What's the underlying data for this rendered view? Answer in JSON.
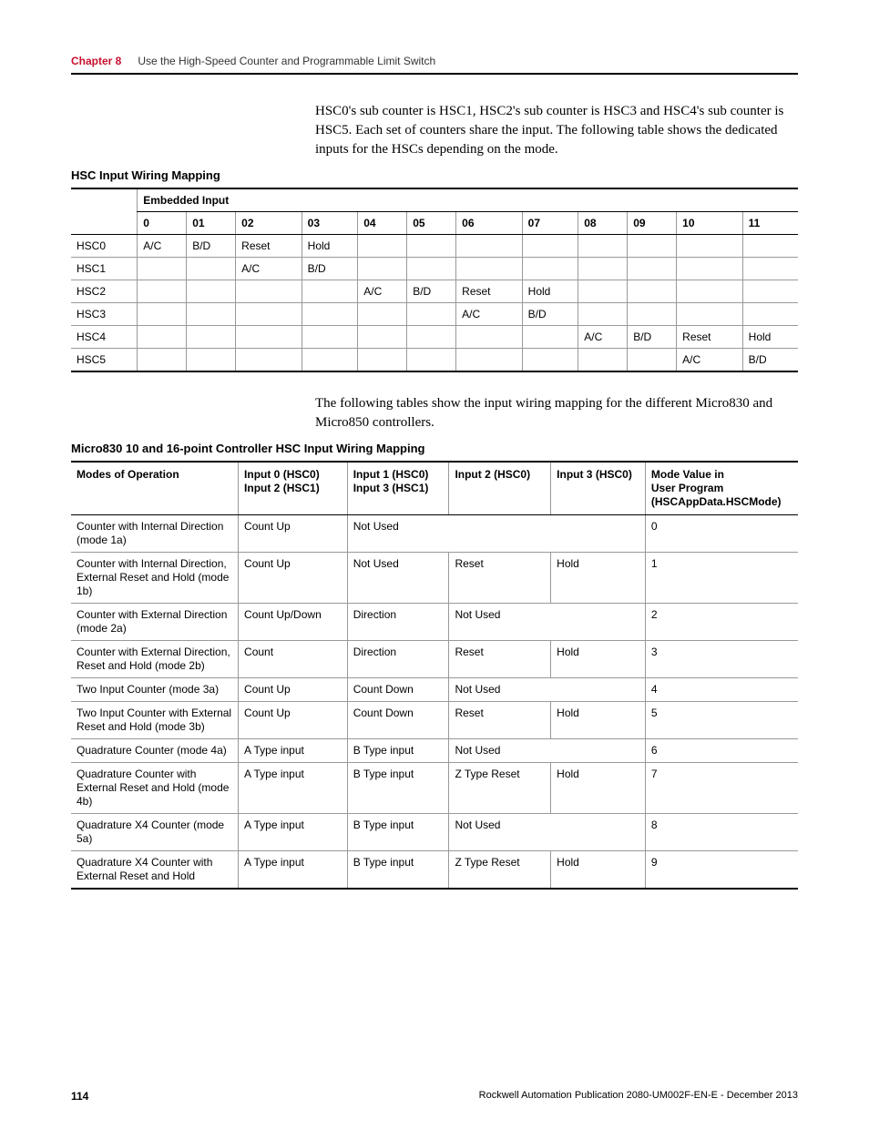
{
  "header": {
    "chapter_label": "Chapter 8",
    "chapter_title": "Use the High-Speed Counter and Programmable Limit Switch"
  },
  "para1": "HSC0's sub counter is HSC1, HSC2's sub counter is HSC3 and HSC4's sub counter is HSC5. Each set of counters share the input. The following table shows the dedicated inputs for the HSCs depending on the mode.",
  "table1": {
    "title": "HSC Input Wiring Mapping",
    "group_header": "Embedded Input",
    "columns": [
      "0",
      "01",
      "02",
      "03",
      "04",
      "05",
      "06",
      "07",
      "08",
      "09",
      "10",
      "11"
    ],
    "rows": [
      {
        "label": "HSC0",
        "cells": [
          "A/C",
          "B/D",
          "Reset",
          "Hold",
          "",
          "",
          "",
          "",
          "",
          "",
          "",
          ""
        ]
      },
      {
        "label": "HSC1",
        "cells": [
          "",
          "",
          "A/C",
          "B/D",
          "",
          "",
          "",
          "",
          "",
          "",
          "",
          ""
        ]
      },
      {
        "label": "HSC2",
        "cells": [
          "",
          "",
          "",
          "",
          "A/C",
          "B/D",
          "Reset",
          "Hold",
          "",
          "",
          "",
          ""
        ]
      },
      {
        "label": "HSC3",
        "cells": [
          "",
          "",
          "",
          "",
          "",
          "",
          "A/C",
          "B/D",
          "",
          "",
          "",
          ""
        ]
      },
      {
        "label": "HSC4",
        "cells": [
          "",
          "",
          "",
          "",
          "",
          "",
          "",
          "",
          "A/C",
          "B/D",
          "Reset",
          "Hold"
        ]
      },
      {
        "label": "HSC5",
        "cells": [
          "",
          "",
          "",
          "",
          "",
          "",
          "",
          "",
          "",
          "",
          "A/C",
          "B/D"
        ]
      }
    ]
  },
  "para2": "The following tables show the input wiring mapping for the different Micro830 and Micro850 controllers.",
  "table2": {
    "title": "Micro830 10 and 16-point Controller HSC Input Wiring Mapping",
    "headers": {
      "c0": "Modes of Operation",
      "c1a": "Input 0 (HSC0)",
      "c1b": "Input 2 (HSC1)",
      "c2a": "Input 1 (HSC0)",
      "c2b": "Input 3 (HSC1)",
      "c3": "Input 2 (HSC0)",
      "c4": "Input 3 (HSC0)",
      "c5a": "Mode Value in",
      "c5b": "User Program",
      "c5c": "(HSCAppData.HSCMode)"
    },
    "rows": [
      {
        "mode": "Counter with Internal Direction (mode 1a)",
        "c1": "Count Up",
        "c2": "Not Used",
        "c2span": 3,
        "val": "0"
      },
      {
        "mode": "Counter with Internal Direction, External Reset and Hold (mode 1b)",
        "c1": "Count Up",
        "c2": "Not Used",
        "c3": "Reset",
        "c4": "Hold",
        "val": "1"
      },
      {
        "mode": "Counter with External Direction (mode 2a)",
        "c1": "Count Up/Down",
        "c2": "Direction",
        "c3": "Not Used",
        "c3span": 2,
        "val": "2"
      },
      {
        "mode": "Counter with External Direction, Reset and Hold (mode 2b)",
        "c1": "Count",
        "c2": "Direction",
        "c3": "Reset",
        "c4": "Hold",
        "val": "3"
      },
      {
        "mode": "Two Input Counter (mode 3a)",
        "c1": "Count Up",
        "c2": "Count Down",
        "c3": "Not Used",
        "c3span": 2,
        "val": "4"
      },
      {
        "mode": "Two Input Counter with External Reset and Hold (mode 3b)",
        "c1": "Count Up",
        "c2": "Count Down",
        "c3": "Reset",
        "c4": "Hold",
        "val": "5"
      },
      {
        "mode": "Quadrature Counter (mode 4a)",
        "c1": "A Type input",
        "c2": "B Type input",
        "c3": "Not Used",
        "c3span": 2,
        "val": "6"
      },
      {
        "mode": "Quadrature Counter with External Reset and Hold (mode 4b)",
        "c1": "A Type input",
        "c2": "B Type input",
        "c3": "Z Type Reset",
        "c4": "Hold",
        "val": "7"
      },
      {
        "mode": "Quadrature X4 Counter (mode 5a)",
        "c1": "A Type input",
        "c2": "B Type input",
        "c3": "Not Used",
        "c3span": 2,
        "val": "8"
      },
      {
        "mode": "Quadrature X4 Counter with External Reset and Hold",
        "c1": "A Type input",
        "c2": "B Type input",
        "c3": "Z Type Reset",
        "c4": "Hold",
        "val": "9"
      }
    ]
  },
  "footer": {
    "page_number": "114",
    "pub": "Rockwell Automation Publication 2080-UM002F-EN-E - December 2013"
  },
  "colors": {
    "accent": "#c8102e",
    "rule": "#000000",
    "cell_border": "#999999"
  }
}
